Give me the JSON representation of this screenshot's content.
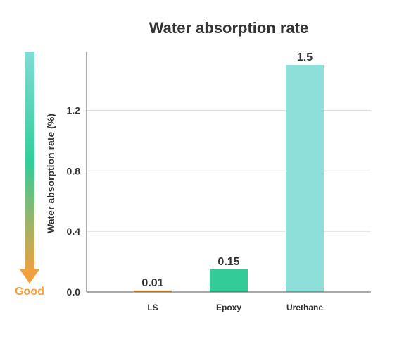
{
  "chart_data": {
    "type": "bar",
    "title": "Water absorption rate",
    "ylabel": "Water absorption rate (%)",
    "xlabel": "",
    "categories": [
      "LS",
      "Epoxy",
      "Urethane"
    ],
    "values": [
      0.01,
      0.15,
      1.5
    ],
    "value_labels": [
      "0.01",
      "0.15",
      "1.5"
    ],
    "bar_colors": [
      "#f0a040",
      "#33cc99",
      "#8edfd9"
    ],
    "ylim": [
      0,
      1.5
    ],
    "yticks": [
      0.0,
      0.4,
      0.8,
      1.2
    ],
    "ytick_labels": [
      "0.0",
      "0.4",
      "0.8",
      "1.2"
    ],
    "grid": true
  },
  "indicator": {
    "label": "Good",
    "color_top": "#7fdcd3",
    "color_mid": "#33cc99",
    "color_bottom": "#f0a040"
  }
}
